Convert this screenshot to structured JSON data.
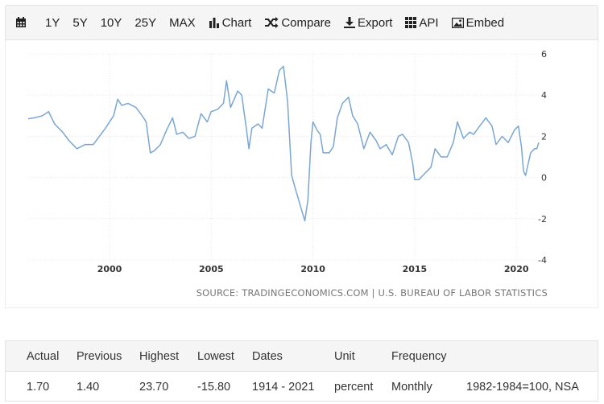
{
  "toolbar": {
    "ranges": [
      "1Y",
      "5Y",
      "10Y",
      "25Y",
      "MAX"
    ],
    "chart_label": "Chart",
    "compare_label": "Compare",
    "export_label": "Export",
    "api_label": "API",
    "embed_label": "Embed"
  },
  "source_text": "SOURCE: TRADINGECONOMICS.COM | U.S. BUREAU OF LABOR STATISTICS",
  "stats": {
    "headers": [
      "Actual",
      "Previous",
      "Highest",
      "Lowest",
      "Dates",
      "Unit",
      "Frequency",
      ""
    ],
    "values": [
      "1.70",
      "1.40",
      "23.70",
      "-15.80",
      "1914 - 2021",
      "percent",
      "Monthly",
      "1982-1984=100, NSA"
    ]
  },
  "colors": {
    "line": "#7aa6d4",
    "grid": "#e8e8e8"
  },
  "chart_data": {
    "type": "line",
    "title": "",
    "xlabel": "",
    "ylabel": "",
    "x_ticks": [
      2000,
      2005,
      2010,
      2015,
      2020
    ],
    "y_ticks": [
      6,
      4,
      2,
      0,
      -2,
      -4
    ],
    "xlim": [
      1996.0,
      2021.1
    ],
    "ylim": [
      -4,
      6
    ],
    "grid": true,
    "series": [
      {
        "name": "",
        "points": [
          [
            1996.0,
            2.85
          ],
          [
            1996.3,
            2.9
          ],
          [
            1996.7,
            3.0
          ],
          [
            1997.0,
            3.2
          ],
          [
            1997.3,
            2.6
          ],
          [
            1997.7,
            2.2
          ],
          [
            1998.0,
            1.8
          ],
          [
            1998.4,
            1.4
          ],
          [
            1998.8,
            1.6
          ],
          [
            1999.2,
            1.6
          ],
          [
            1999.5,
            2.0
          ],
          [
            1999.8,
            2.4
          ],
          [
            2000.2,
            3.0
          ],
          [
            2000.4,
            3.8
          ],
          [
            2000.6,
            3.5
          ],
          [
            2000.9,
            3.6
          ],
          [
            2001.3,
            3.4
          ],
          [
            2001.6,
            3.0
          ],
          [
            2001.8,
            2.7
          ],
          [
            2002.0,
            1.2
          ],
          [
            2002.2,
            1.3
          ],
          [
            2002.5,
            1.6
          ],
          [
            2002.8,
            2.3
          ],
          [
            2003.1,
            2.9
          ],
          [
            2003.3,
            2.1
          ],
          [
            2003.6,
            2.2
          ],
          [
            2003.9,
            1.9
          ],
          [
            2004.2,
            2.0
          ],
          [
            2004.5,
            3.1
          ],
          [
            2004.8,
            2.7
          ],
          [
            2005.0,
            3.2
          ],
          [
            2005.3,
            3.3
          ],
          [
            2005.6,
            3.6
          ],
          [
            2005.75,
            4.7
          ],
          [
            2005.95,
            3.4
          ],
          [
            2006.3,
            4.2
          ],
          [
            2006.5,
            4.0
          ],
          [
            2006.75,
            2.2
          ],
          [
            2006.85,
            1.4
          ],
          [
            2007.0,
            2.4
          ],
          [
            2007.3,
            2.6
          ],
          [
            2007.5,
            2.4
          ],
          [
            2007.8,
            4.3
          ],
          [
            2008.1,
            4.1
          ],
          [
            2008.35,
            5.2
          ],
          [
            2008.55,
            5.4
          ],
          [
            2008.75,
            3.7
          ],
          [
            2008.95,
            0.1
          ],
          [
            2009.15,
            -0.6
          ],
          [
            2009.45,
            -1.6
          ],
          [
            2009.6,
            -2.1
          ],
          [
            2009.75,
            -1.1
          ],
          [
            2009.9,
            1.7
          ],
          [
            2010.0,
            2.7
          ],
          [
            2010.2,
            2.3
          ],
          [
            2010.35,
            2.1
          ],
          [
            2010.5,
            1.2
          ],
          [
            2010.8,
            1.2
          ],
          [
            2011.0,
            1.5
          ],
          [
            2011.2,
            2.9
          ],
          [
            2011.45,
            3.6
          ],
          [
            2011.75,
            3.9
          ],
          [
            2011.95,
            3.0
          ],
          [
            2012.2,
            2.6
          ],
          [
            2012.5,
            1.4
          ],
          [
            2012.8,
            2.2
          ],
          [
            2013.1,
            1.8
          ],
          [
            2013.3,
            1.4
          ],
          [
            2013.6,
            1.6
          ],
          [
            2013.9,
            1.1
          ],
          [
            2014.2,
            2.0
          ],
          [
            2014.4,
            2.1
          ],
          [
            2014.7,
            1.7
          ],
          [
            2014.9,
            0.7
          ],
          [
            2015.0,
            -0.1
          ],
          [
            2015.2,
            -0.1
          ],
          [
            2015.5,
            0.2
          ],
          [
            2015.8,
            0.5
          ],
          [
            2016.0,
            1.4
          ],
          [
            2016.3,
            1.0
          ],
          [
            2016.6,
            1.0
          ],
          [
            2016.9,
            1.7
          ],
          [
            2017.1,
            2.7
          ],
          [
            2017.4,
            1.9
          ],
          [
            2017.7,
            2.2
          ],
          [
            2017.9,
            2.1
          ],
          [
            2018.2,
            2.5
          ],
          [
            2018.5,
            2.9
          ],
          [
            2018.8,
            2.5
          ],
          [
            2019.0,
            1.6
          ],
          [
            2019.3,
            2.0
          ],
          [
            2019.6,
            1.7
          ],
          [
            2019.9,
            2.3
          ],
          [
            2020.1,
            2.5
          ],
          [
            2020.25,
            1.5
          ],
          [
            2020.35,
            0.3
          ],
          [
            2020.45,
            0.1
          ],
          [
            2020.7,
            1.2
          ],
          [
            2020.9,
            1.4
          ],
          [
            2021.0,
            1.4
          ],
          [
            2021.1,
            1.7
          ]
        ]
      }
    ]
  }
}
